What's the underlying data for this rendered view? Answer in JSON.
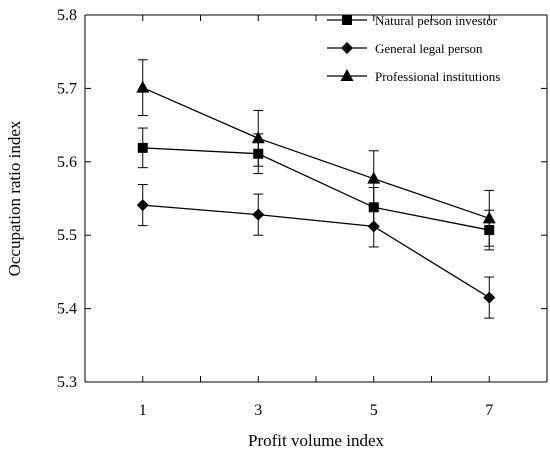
{
  "chart_data": {
    "type": "line",
    "xlabel": "Profit volume index",
    "ylabel": "Occupation ratio index",
    "x": [
      1,
      3,
      5,
      7
    ],
    "x_tick_labels": [
      "1",
      "3",
      "5",
      "7"
    ],
    "xlim": [
      0,
      8
    ],
    "ylim": [
      5.3,
      5.8
    ],
    "y_tick_labels": [
      "5.3",
      "5.4",
      "5.5",
      "5.6",
      "5.7",
      "5.8"
    ],
    "grid": false,
    "legend_position": "top-right",
    "series": [
      {
        "name": "Natural person investor",
        "marker": "square",
        "values": [
          5.619,
          5.611,
          5.538,
          5.507
        ],
        "error": [
          0.027,
          0.027,
          0.027,
          0.027
        ]
      },
      {
        "name": "General legal person",
        "marker": "diamond",
        "values": [
          5.541,
          5.528,
          5.512,
          5.415
        ],
        "error": [
          0.028,
          0.028,
          0.028,
          0.028
        ]
      },
      {
        "name": "Professional institutions",
        "marker": "triangle",
        "values": [
          5.701,
          5.632,
          5.577,
          5.523
        ],
        "error": [
          0.038,
          0.038,
          0.038,
          0.038
        ]
      }
    ]
  }
}
